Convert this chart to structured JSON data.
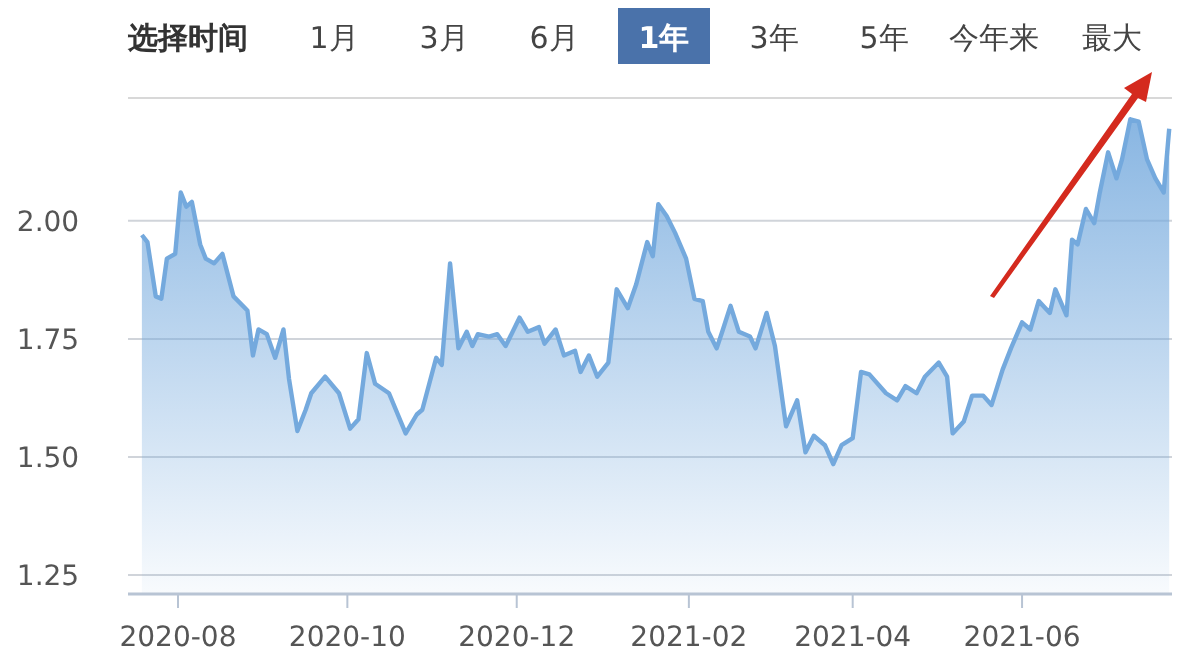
{
  "chart_data": {
    "type": "area",
    "annotations": [
      "选择时间",
      "1月",
      "3月",
      "6月",
      "1年",
      "3年",
      "5年",
      "今年来",
      "最大"
    ],
    "x": [
      "2020-07-19",
      "2020-07-21",
      "2020-07-24",
      "2020-07-26",
      "2020-07-28",
      "2020-07-31",
      "2020-08-02",
      "2020-08-04",
      "2020-08-06",
      "2020-08-09",
      "2020-08-11",
      "2020-08-14",
      "2020-08-17",
      "2020-08-21",
      "2020-08-26",
      "2020-08-28",
      "2020-08-30",
      "2020-09-02",
      "2020-09-05",
      "2020-09-08",
      "2020-09-10",
      "2020-09-13",
      "2020-09-16",
      "2020-09-18",
      "2020-09-23",
      "2020-09-28",
      "2020-10-02",
      "2020-10-05",
      "2020-10-08",
      "2020-10-11",
      "2020-10-16",
      "2020-10-22",
      "2020-10-26",
      "2020-10-28",
      "2020-11-02",
      "2020-11-04",
      "2020-11-07",
      "2020-11-10",
      "2020-11-13",
      "2020-11-15",
      "2020-11-17",
      "2020-11-21",
      "2020-11-24",
      "2020-11-27",
      "2020-12-02",
      "2020-12-05",
      "2020-12-09",
      "2020-12-11",
      "2020-12-15",
      "2020-12-18",
      "2020-12-22",
      "2020-12-24",
      "2020-12-27",
      "2020-12-30",
      "2021-01-03",
      "2021-01-06",
      "2021-01-10",
      "2021-01-13",
      "2021-01-17",
      "2021-01-19",
      "2021-01-21",
      "2021-01-24",
      "2021-01-27",
      "2021-01-31",
      "2021-02-03",
      "2021-02-06",
      "2021-02-08",
      "2021-02-11",
      "2021-02-13",
      "2021-02-16",
      "2021-02-19",
      "2021-02-23",
      "2021-02-25",
      "2021-03-01",
      "2021-03-04",
      "2021-03-08",
      "2021-03-12",
      "2021-03-15",
      "2021-03-18",
      "2021-03-22",
      "2021-03-25",
      "2021-03-28",
      "2021-04-01",
      "2021-04-04",
      "2021-04-07",
      "2021-04-13",
      "2021-04-17",
      "2021-04-20",
      "2021-04-24",
      "2021-04-27",
      "2021-05-02",
      "2021-05-05",
      "2021-05-07",
      "2021-05-11",
      "2021-05-14",
      "2021-05-18",
      "2021-05-21",
      "2021-05-25",
      "2021-05-28",
      "2021-06-01",
      "2021-06-04",
      "2021-06-07",
      "2021-06-11",
      "2021-06-13",
      "2021-06-17",
      "2021-06-19",
      "2021-06-21",
      "2021-06-24",
      "2021-06-27",
      "2021-06-29",
      "2021-07-02",
      "2021-07-05",
      "2021-07-07",
      "2021-07-10",
      "2021-07-13",
      "2021-07-16",
      "2021-07-19",
      "2021-07-22",
      "2021-07-24"
    ],
    "series": [
      {
        "color": "#74a9dd",
        "values": [
          1.97,
          1.955,
          1.84,
          1.835,
          1.92,
          1.93,
          2.06,
          2.03,
          2.04,
          1.95,
          1.92,
          1.91,
          1.93,
          1.84,
          1.81,
          1.715,
          1.77,
          1.76,
          1.71,
          1.77,
          1.665,
          1.555,
          1.6,
          1.635,
          1.67,
          1.635,
          1.56,
          1.58,
          1.72,
          1.655,
          1.635,
          1.55,
          1.59,
          1.6,
          1.71,
          1.695,
          1.91,
          1.73,
          1.765,
          1.735,
          1.76,
          1.755,
          1.76,
          1.735,
          1.795,
          1.765,
          1.775,
          1.74,
          1.77,
          1.715,
          1.725,
          1.68,
          1.715,
          1.67,
          1.7,
          1.855,
          1.815,
          1.865,
          1.955,
          1.925,
          2.035,
          2.01,
          1.975,
          1.92,
          1.835,
          1.83,
          1.765,
          1.73,
          1.765,
          1.82,
          1.765,
          1.755,
          1.73,
          1.805,
          1.735,
          1.565,
          1.62,
          1.51,
          1.545,
          1.525,
          1.485,
          1.525,
          1.54,
          1.68,
          1.675,
          1.635,
          1.62,
          1.65,
          1.635,
          1.67,
          1.7,
          1.67,
          1.55,
          1.575,
          1.63,
          1.63,
          1.61,
          1.685,
          1.73,
          1.785,
          1.77,
          1.83,
          1.805,
          1.855,
          1.8,
          1.96,
          1.95,
          2.025,
          1.995,
          2.06,
          2.145,
          2.09,
          2.13,
          2.215,
          2.21,
          2.13,
          2.09,
          2.06,
          2.195
        ]
      }
    ],
    "xlim": [
      "2020-07-14",
      "2021-07-25"
    ],
    "xticks": [
      {
        "value": "2020-08",
        "label": "2020-08"
      },
      {
        "value": "2020-10",
        "label": "2020-10"
      },
      {
        "value": "2020-12",
        "label": "2020-12"
      },
      {
        "value": "2021-02",
        "label": "2021-02"
      },
      {
        "value": "2021-04",
        "label": "2021-04"
      },
      {
        "value": "2021-06",
        "label": "2021-06"
      }
    ],
    "ylim": [
      1.21,
      2.26
    ],
    "yticks": [
      {
        "value": 1.25,
        "label": "1.25"
      },
      {
        "value": 1.5,
        "label": "1.50"
      },
      {
        "value": 1.75,
        "label": "1.75"
      },
      {
        "value": 2,
        "label": "2.00"
      }
    ],
    "grid": "y"
  }
}
